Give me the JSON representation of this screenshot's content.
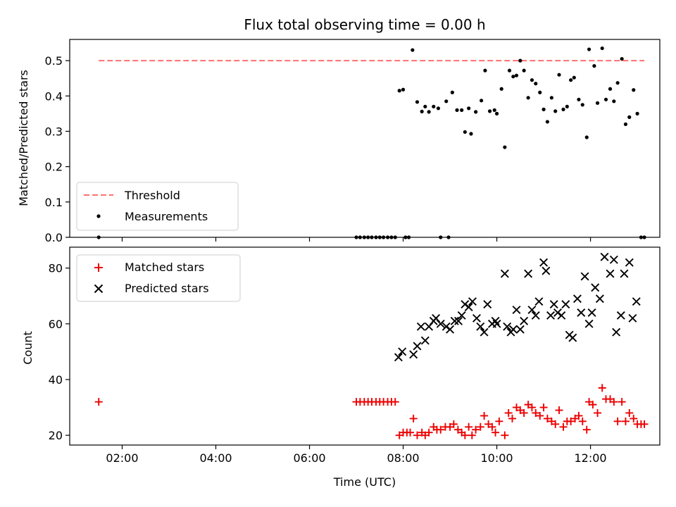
{
  "title": "Flux total observing time = 0.00 h",
  "colors": {
    "threshold": "#ff7070",
    "measurement": "#000000",
    "matched": "#ee0000",
    "predicted": "#000000",
    "legend_border": "#cccccc"
  },
  "chart_data": [
    {
      "type": "scatter",
      "ylabel": "Matched/Predicted stars",
      "ylim": [
        0,
        0.56
      ],
      "yticks": [
        0.0,
        0.1,
        0.2,
        0.3,
        0.4,
        0.5
      ],
      "ytick_labels": [
        "0.0",
        "0.1",
        "0.2",
        "0.3",
        "0.4",
        "0.5"
      ],
      "xlim": [
        0.88,
        13.48
      ],
      "xticks": [
        2,
        4,
        6,
        8,
        10,
        12
      ],
      "xtick_labels": [],
      "legend_position": "lower-left",
      "threshold": {
        "name": "Threshold",
        "value": 0.5,
        "x_range": [
          1.5,
          13.15
        ]
      },
      "series": [
        {
          "name": "Measurements",
          "points": [
            [
              1.5,
              0.0
            ],
            [
              7.0,
              0.0
            ],
            [
              7.08,
              0.0
            ],
            [
              7.17,
              0.0
            ],
            [
              7.25,
              0.0
            ],
            [
              7.33,
              0.0
            ],
            [
              7.42,
              0.0
            ],
            [
              7.5,
              0.0
            ],
            [
              7.58,
              0.0
            ],
            [
              7.67,
              0.0
            ],
            [
              7.75,
              0.0
            ],
            [
              7.83,
              0.0
            ],
            [
              8.05,
              0.0
            ],
            [
              8.12,
              0.0
            ],
            [
              8.8,
              0.0
            ],
            [
              8.97,
              0.0
            ],
            [
              13.08,
              0.0
            ],
            [
              13.15,
              0.0
            ],
            [
              7.92,
              0.415
            ],
            [
              8.0,
              0.418
            ],
            [
              8.2,
              0.53
            ],
            [
              8.3,
              0.383
            ],
            [
              8.4,
              0.356
            ],
            [
              8.47,
              0.37
            ],
            [
              8.55,
              0.355
            ],
            [
              8.65,
              0.37
            ],
            [
              8.75,
              0.365
            ],
            [
              8.92,
              0.385
            ],
            [
              9.05,
              0.41
            ],
            [
              9.15,
              0.36
            ],
            [
              9.25,
              0.36
            ],
            [
              9.32,
              0.298
            ],
            [
              9.4,
              0.365
            ],
            [
              9.45,
              0.293
            ],
            [
              9.55,
              0.355
            ],
            [
              9.67,
              0.387
            ],
            [
              9.75,
              0.472
            ],
            [
              9.85,
              0.357
            ],
            [
              9.95,
              0.36
            ],
            [
              10.0,
              0.35
            ],
            [
              10.1,
              0.42
            ],
            [
              10.17,
              0.255
            ],
            [
              10.27,
              0.472
            ],
            [
              10.35,
              0.455
            ],
            [
              10.42,
              0.458
            ],
            [
              10.5,
              0.5
            ],
            [
              10.58,
              0.472
            ],
            [
              10.67,
              0.395
            ],
            [
              10.75,
              0.445
            ],
            [
              10.83,
              0.435
            ],
            [
              10.92,
              0.41
            ],
            [
              11.0,
              0.362
            ],
            [
              11.08,
              0.327
            ],
            [
              11.17,
              0.395
            ],
            [
              11.25,
              0.357
            ],
            [
              11.33,
              0.46
            ],
            [
              11.42,
              0.362
            ],
            [
              11.5,
              0.37
            ],
            [
              11.58,
              0.445
            ],
            [
              11.65,
              0.452
            ],
            [
              11.75,
              0.39
            ],
            [
              11.83,
              0.375
            ],
            [
              11.92,
              0.283
            ],
            [
              11.97,
              0.532
            ],
            [
              12.08,
              0.485
            ],
            [
              12.15,
              0.38
            ],
            [
              12.25,
              0.535
            ],
            [
              12.33,
              0.39
            ],
            [
              12.42,
              0.42
            ],
            [
              12.5,
              0.385
            ],
            [
              12.58,
              0.437
            ],
            [
              12.67,
              0.505
            ],
            [
              12.75,
              0.32
            ],
            [
              12.83,
              0.34
            ],
            [
              12.92,
              0.417
            ],
            [
              13.0,
              0.35
            ]
          ]
        }
      ]
    },
    {
      "type": "scatter",
      "xlabel": "Time (UTC)",
      "ylabel": "Count",
      "ylim": [
        16.5,
        87.5
      ],
      "yticks": [
        20,
        40,
        60,
        80
      ],
      "ytick_labels": [
        "20",
        "40",
        "60",
        "80"
      ],
      "xlim": [
        0.88,
        13.48
      ],
      "xticks": [
        2,
        4,
        6,
        8,
        10,
        12
      ],
      "xtick_labels": [
        "02:00",
        "04:00",
        "06:00",
        "08:00",
        "10:00",
        "12:00"
      ],
      "legend_position": "upper-left",
      "series": [
        {
          "name": "Matched stars",
          "marker": "plus",
          "points": [
            [
              1.5,
              32
            ],
            [
              7.0,
              32
            ],
            [
              7.08,
              32
            ],
            [
              7.17,
              32
            ],
            [
              7.25,
              32
            ],
            [
              7.33,
              32
            ],
            [
              7.42,
              32
            ],
            [
              7.5,
              32
            ],
            [
              7.58,
              32
            ],
            [
              7.67,
              32
            ],
            [
              7.75,
              32
            ],
            [
              7.83,
              32
            ],
            [
              7.92,
              20
            ],
            [
              8.0,
              21
            ],
            [
              8.08,
              21
            ],
            [
              8.15,
              21
            ],
            [
              8.22,
              26
            ],
            [
              8.3,
              20
            ],
            [
              8.4,
              21
            ],
            [
              8.47,
              20
            ],
            [
              8.55,
              21
            ],
            [
              8.65,
              23
            ],
            [
              8.72,
              22
            ],
            [
              8.8,
              22
            ],
            [
              8.9,
              23
            ],
            [
              9.0,
              23
            ],
            [
              9.08,
              24
            ],
            [
              9.17,
              22
            ],
            [
              9.25,
              21
            ],
            [
              9.32,
              20
            ],
            [
              9.4,
              23
            ],
            [
              9.47,
              20
            ],
            [
              9.55,
              22
            ],
            [
              9.65,
              23
            ],
            [
              9.73,
              27
            ],
            [
              9.82,
              24
            ],
            [
              9.9,
              23
            ],
            [
              9.97,
              21
            ],
            [
              10.05,
              25
            ],
            [
              10.17,
              20
            ],
            [
              10.25,
              28
            ],
            [
              10.33,
              26
            ],
            [
              10.42,
              30
            ],
            [
              10.5,
              29
            ],
            [
              10.58,
              28
            ],
            [
              10.67,
              31
            ],
            [
              10.75,
              30
            ],
            [
              10.83,
              28
            ],
            [
              10.92,
              27
            ],
            [
              11.0,
              30
            ],
            [
              11.08,
              26
            ],
            [
              11.17,
              25
            ],
            [
              11.25,
              24
            ],
            [
              11.33,
              29
            ],
            [
              11.42,
              23
            ],
            [
              11.5,
              25
            ],
            [
              11.58,
              25
            ],
            [
              11.67,
              26
            ],
            [
              11.75,
              27
            ],
            [
              11.83,
              25
            ],
            [
              11.92,
              22
            ],
            [
              11.97,
              32
            ],
            [
              12.05,
              31
            ],
            [
              12.15,
              28
            ],
            [
              12.25,
              37
            ],
            [
              12.33,
              33
            ],
            [
              12.42,
              33
            ],
            [
              12.5,
              32
            ],
            [
              12.58,
              25
            ],
            [
              12.67,
              32
            ],
            [
              12.75,
              25
            ],
            [
              12.83,
              28
            ],
            [
              12.92,
              26
            ],
            [
              13.0,
              24
            ],
            [
              13.08,
              24
            ],
            [
              13.15,
              24
            ]
          ]
        },
        {
          "name": "Predicted stars",
          "marker": "x",
          "points": [
            [
              7.9,
              48
            ],
            [
              7.98,
              50
            ],
            [
              8.22,
              49
            ],
            [
              8.3,
              52
            ],
            [
              8.38,
              59
            ],
            [
              8.47,
              54
            ],
            [
              8.55,
              59
            ],
            [
              8.65,
              61
            ],
            [
              8.7,
              62
            ],
            [
              8.8,
              60
            ],
            [
              8.92,
              59
            ],
            [
              9.0,
              58
            ],
            [
              9.1,
              61
            ],
            [
              9.18,
              61
            ],
            [
              9.25,
              63
            ],
            [
              9.32,
              67
            ],
            [
              9.4,
              66
            ],
            [
              9.48,
              68
            ],
            [
              9.57,
              62
            ],
            [
              9.65,
              59
            ],
            [
              9.73,
              57
            ],
            [
              9.8,
              67
            ],
            [
              9.9,
              60
            ],
            [
              9.97,
              61
            ],
            [
              10.0,
              60
            ],
            [
              10.17,
              78
            ],
            [
              10.22,
              59
            ],
            [
              10.3,
              57
            ],
            [
              10.35,
              58
            ],
            [
              10.42,
              65
            ],
            [
              10.5,
              58
            ],
            [
              10.58,
              61
            ],
            [
              10.67,
              78
            ],
            [
              10.75,
              65
            ],
            [
              10.83,
              63
            ],
            [
              10.9,
              68
            ],
            [
              11.0,
              82
            ],
            [
              11.05,
              79
            ],
            [
              11.15,
              63
            ],
            [
              11.22,
              67
            ],
            [
              11.3,
              64
            ],
            [
              11.38,
              63
            ],
            [
              11.47,
              67
            ],
            [
              11.55,
              56
            ],
            [
              11.62,
              55
            ],
            [
              11.72,
              69
            ],
            [
              11.8,
              64
            ],
            [
              11.88,
              77
            ],
            [
              11.97,
              60
            ],
            [
              12.03,
              64
            ],
            [
              12.1,
              73
            ],
            [
              12.2,
              69
            ],
            [
              12.3,
              84
            ],
            [
              12.42,
              78
            ],
            [
              12.5,
              83
            ],
            [
              12.55,
              57
            ],
            [
              12.65,
              63
            ],
            [
              12.72,
              78
            ],
            [
              12.83,
              82
            ],
            [
              12.9,
              62
            ],
            [
              12.98,
              68
            ]
          ]
        }
      ]
    }
  ]
}
